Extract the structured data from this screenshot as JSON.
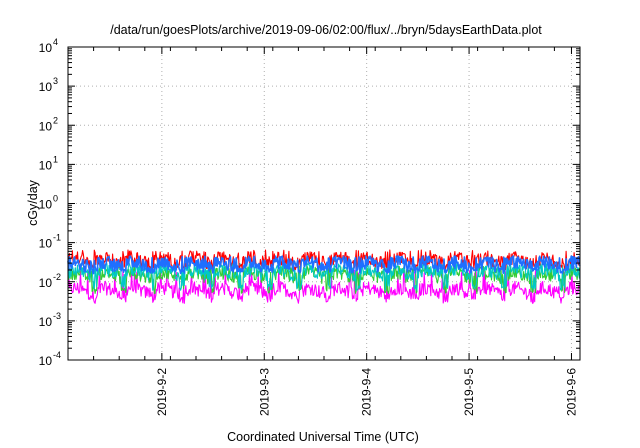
{
  "chart_data": {
    "type": "line",
    "title": "/data/run/goesPlots/archive/2019-09-06/02:00/flux/../bryn/5daysEarthData.plot",
    "xlabel": "Coordinated Universal Time (UTC)",
    "ylabel": "cGy/day",
    "yscale": "log",
    "ylim": [
      0.0001,
      10000
    ],
    "xlim": [
      "2019-09-01T02:00",
      "2019-09-06T02:00"
    ],
    "y_ticks": [
      {
        "base": "10",
        "exp": "-4"
      },
      {
        "base": "10",
        "exp": "-3"
      },
      {
        "base": "10",
        "exp": "-2"
      },
      {
        "base": "10",
        "exp": "-1"
      },
      {
        "base": "10",
        "exp": "0"
      },
      {
        "base": "10",
        "exp": "1"
      },
      {
        "base": "10",
        "exp": "2"
      },
      {
        "base": "10",
        "exp": "3"
      },
      {
        "base": "10",
        "exp": "4"
      }
    ],
    "x_ticks": [
      "2019-9-2",
      "2019-9-3",
      "2019-9-4",
      "2019-9-5",
      "2019-9-6"
    ],
    "grid": true,
    "legend": "none",
    "series": [
      {
        "color": "#ff0000",
        "typical_value": 0.035,
        "range": [
          0.02,
          0.065
        ]
      },
      {
        "color": "#1f6fff",
        "typical_value": 0.028,
        "range": [
          0.016,
          0.045
        ]
      },
      {
        "color": "#00c8c8",
        "typical_value": 0.018,
        "range": [
          0.006,
          0.03
        ]
      },
      {
        "color": "#33cc33",
        "typical_value": 0.015,
        "range": [
          0.005,
          0.025
        ]
      },
      {
        "color": "#ff00ff",
        "typical_value": 0.006,
        "range": [
          0.0028,
          0.02
        ]
      }
    ]
  }
}
